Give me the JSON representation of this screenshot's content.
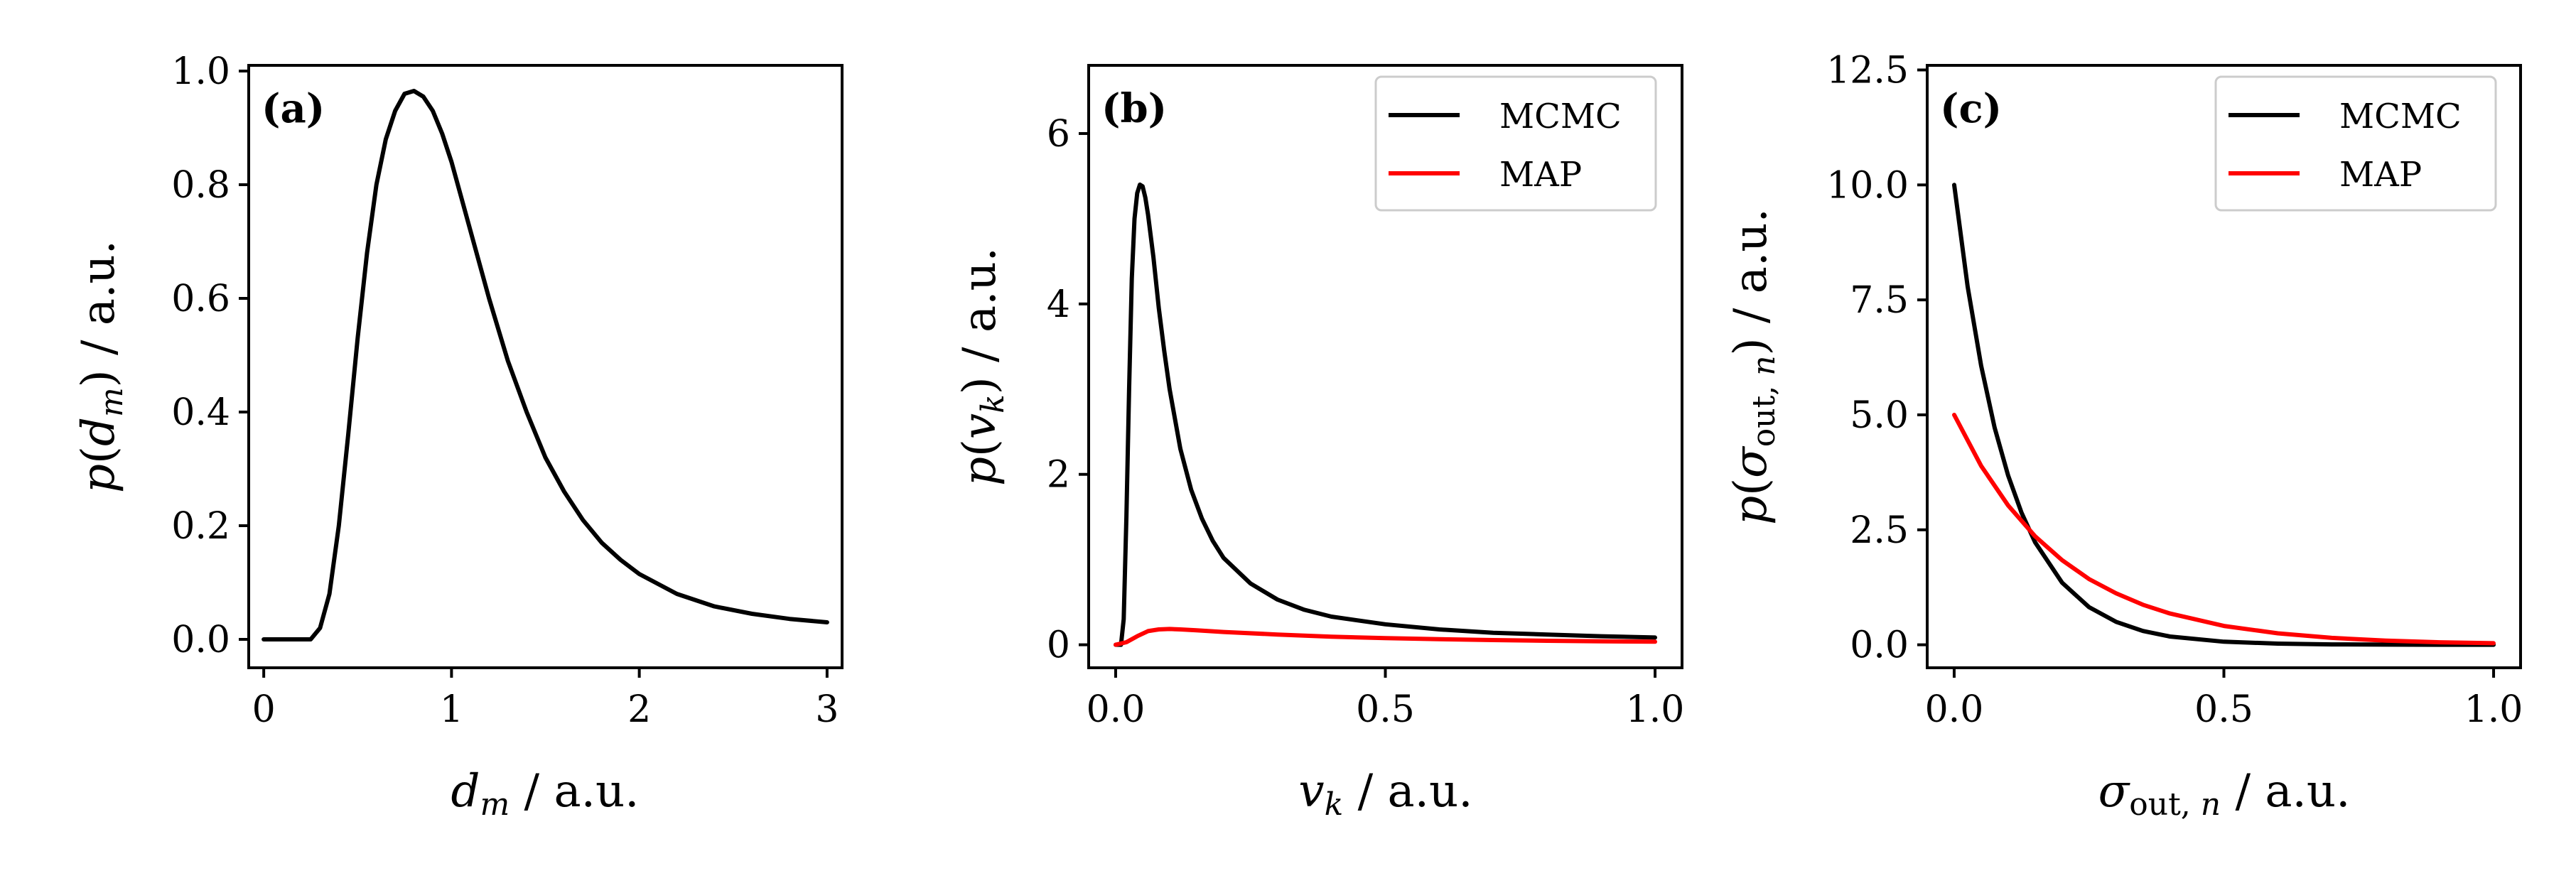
{
  "chart_data": [
    {
      "type": "line",
      "panel_label": "(a)",
      "xlabel": "d_m / a.u.",
      "ylabel": "p(d_m) / a.u.",
      "xlim": [
        -0.08,
        3.08
      ],
      "ylim": [
        -0.05,
        1.01
      ],
      "xticks": [
        0,
        1,
        2,
        3
      ],
      "xtick_labels": [
        "0",
        "1",
        "2",
        "3"
      ],
      "yticks": [
        0.0,
        0.2,
        0.4,
        0.6,
        0.8,
        1.0
      ],
      "ytick_labels": [
        "0.0",
        "0.2",
        "0.4",
        "0.6",
        "0.8",
        "1.0"
      ],
      "grid": false,
      "series": [
        {
          "color": "#000000",
          "x": [
            0.0,
            0.25,
            0.3,
            0.35,
            0.4,
            0.45,
            0.5,
            0.55,
            0.6,
            0.65,
            0.7,
            0.75,
            0.8,
            0.85,
            0.9,
            0.95,
            1.0,
            1.1,
            1.2,
            1.3,
            1.4,
            1.5,
            1.6,
            1.7,
            1.8,
            1.9,
            2.0,
            2.2,
            2.4,
            2.6,
            2.8,
            3.0
          ],
          "y": [
            0.0,
            0.0,
            0.02,
            0.08,
            0.2,
            0.36,
            0.53,
            0.68,
            0.8,
            0.88,
            0.93,
            0.96,
            0.965,
            0.955,
            0.93,
            0.89,
            0.84,
            0.72,
            0.6,
            0.49,
            0.4,
            0.32,
            0.26,
            0.21,
            0.17,
            0.14,
            0.115,
            0.08,
            0.058,
            0.045,
            0.036,
            0.03
          ]
        }
      ]
    },
    {
      "type": "line",
      "panel_label": "(b)",
      "xlabel": "v_k / a.u.",
      "ylabel": "p(v_k) / a.u.",
      "xlim": [
        -0.05,
        1.05
      ],
      "ylim": [
        -0.27,
        6.8
      ],
      "xticks": [
        0.0,
        0.5,
        1.0
      ],
      "xtick_labels": [
        "0.0",
        "0.5",
        "1.0"
      ],
      "yticks": [
        0,
        2,
        4,
        6
      ],
      "ytick_labels": [
        "0",
        "2",
        "4",
        "6"
      ],
      "grid": false,
      "legend": {
        "location": "top-right",
        "entries": [
          "MCMC",
          "MAP"
        ]
      },
      "series": [
        {
          "name": "MCMC",
          "color": "#000000",
          "x": [
            0.0,
            0.01,
            0.015,
            0.02,
            0.025,
            0.03,
            0.035,
            0.04,
            0.045,
            0.05,
            0.055,
            0.06,
            0.07,
            0.08,
            0.09,
            0.1,
            0.12,
            0.14,
            0.16,
            0.18,
            0.2,
            0.25,
            0.3,
            0.35,
            0.4,
            0.5,
            0.6,
            0.7,
            0.8,
            0.9,
            1.0
          ],
          "y": [
            0.0,
            0.0,
            0.3,
            1.5,
            3.0,
            4.3,
            5.0,
            5.3,
            5.4,
            5.38,
            5.25,
            5.05,
            4.55,
            3.95,
            3.45,
            3.0,
            2.3,
            1.82,
            1.48,
            1.22,
            1.02,
            0.72,
            0.53,
            0.41,
            0.33,
            0.24,
            0.18,
            0.14,
            0.12,
            0.1,
            0.085
          ]
        },
        {
          "name": "MAP",
          "color": "#ff0000",
          "x": [
            0.0,
            0.02,
            0.04,
            0.06,
            0.08,
            0.1,
            0.12,
            0.15,
            0.2,
            0.3,
            0.4,
            0.5,
            0.6,
            0.7,
            0.8,
            0.9,
            1.0
          ],
          "y": [
            0.0,
            0.03,
            0.1,
            0.16,
            0.18,
            0.185,
            0.18,
            0.17,
            0.15,
            0.12,
            0.095,
            0.078,
            0.065,
            0.055,
            0.047,
            0.041,
            0.036
          ]
        }
      ]
    },
    {
      "type": "line",
      "panel_label": "(c)",
      "xlabel": "σ_out,n / a.u.",
      "ylabel": "p(σ_out,n) / a.u.",
      "xlim": [
        -0.05,
        1.05
      ],
      "ylim": [
        -0.5,
        12.6
      ],
      "xticks": [
        0.0,
        0.5,
        1.0
      ],
      "xtick_labels": [
        "0.0",
        "0.5",
        "1.0"
      ],
      "yticks": [
        0.0,
        2.5,
        5.0,
        7.5,
        10.0,
        12.5
      ],
      "ytick_labels": [
        "0.0",
        "2.5",
        "5.0",
        "7.5",
        "10.0",
        "12.5"
      ],
      "grid": false,
      "legend": {
        "location": "top-right",
        "entries": [
          "MCMC",
          "MAP"
        ]
      },
      "series": [
        {
          "name": "MCMC",
          "color": "#000000",
          "x": [
            0.0,
            0.025,
            0.05,
            0.075,
            0.1,
            0.125,
            0.15,
            0.2,
            0.25,
            0.3,
            0.35,
            0.4,
            0.5,
            0.6,
            0.7,
            0.8,
            0.9,
            1.0
          ],
          "y": [
            10.0,
            7.79,
            6.07,
            4.72,
            3.68,
            2.87,
            2.23,
            1.35,
            0.82,
            0.5,
            0.3,
            0.18,
            0.067,
            0.025,
            0.009,
            0.003,
            0.001,
            0.0005
          ]
        },
        {
          "name": "MAP",
          "color": "#ff0000",
          "x": [
            0.0,
            0.05,
            0.1,
            0.15,
            0.2,
            0.25,
            0.3,
            0.35,
            0.4,
            0.5,
            0.6,
            0.7,
            0.8,
            0.9,
            1.0
          ],
          "y": [
            5.0,
            3.89,
            3.03,
            2.36,
            1.84,
            1.43,
            1.12,
            0.87,
            0.68,
            0.41,
            0.25,
            0.15,
            0.09,
            0.055,
            0.034
          ]
        }
      ]
    }
  ]
}
